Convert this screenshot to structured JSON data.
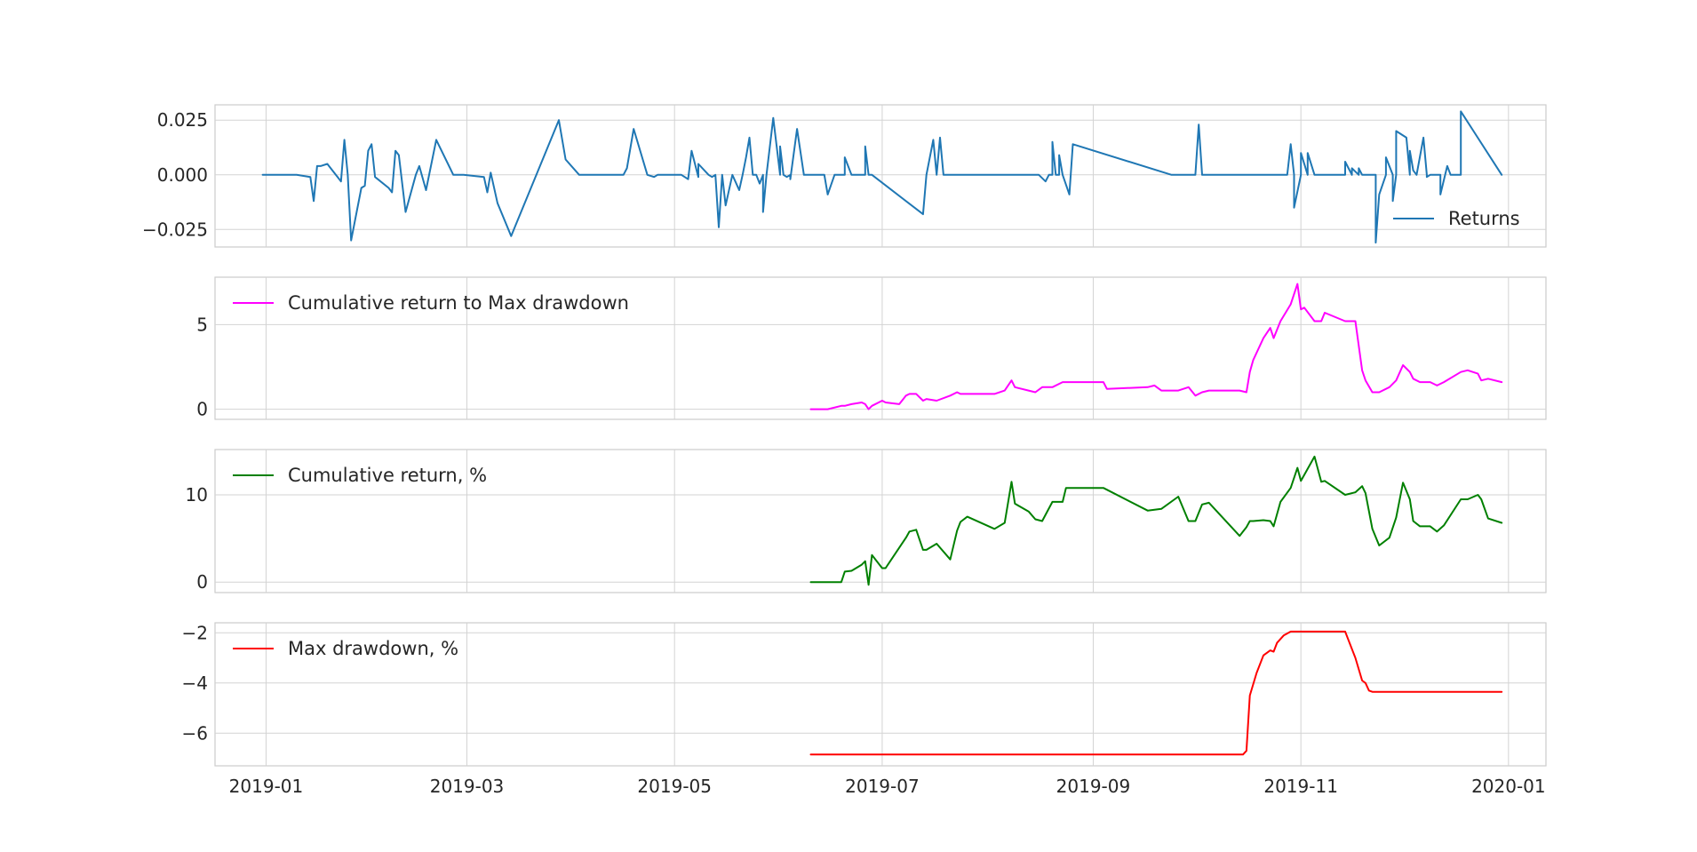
{
  "chart_data": {
    "type": "line",
    "x_range": [
      "2018-12-17",
      "2020-01-12"
    ],
    "x_ticks": [
      "2019-01",
      "2019-03",
      "2019-05",
      "2019-07",
      "2019-09",
      "2019-11",
      "2020-01"
    ],
    "grid": true,
    "panels": [
      {
        "ylim": [
          -0.033,
          0.032
        ],
        "y_ticks": [
          0.025,
          0.0,
          -0.025
        ],
        "y_tick_labels": [
          "0.025",
          "0.000",
          "−0.025"
        ],
        "legend_position": "lower-right",
        "series": [
          {
            "name": "Returns",
            "color": "#1f77b4",
            "x": [
              "2018-12-31",
              "2019-01-10",
              "2019-01-14",
              "2019-01-15",
              "2019-01-16",
              "2019-01-17",
              "2019-01-19",
              "2019-01-23",
              "2019-01-24",
              "2019-01-25",
              "2019-01-26",
              "2019-01-29",
              "2019-01-30",
              "2019-01-31",
              "2019-02-01",
              "2019-02-02",
              "2019-02-06",
              "2019-02-07",
              "2019-02-08",
              "2019-02-09",
              "2019-02-11",
              "2019-02-14",
              "2019-02-15",
              "2019-02-17",
              "2019-02-20",
              "2019-02-25",
              "2019-02-26",
              "2019-02-27",
              "2019-02-28",
              "2019-03-06",
              "2019-03-07",
              "2019-03-08",
              "2019-03-10",
              "2019-03-14",
              "2019-03-28",
              "2019-03-30",
              "2019-04-03",
              "2019-04-05",
              "2019-04-08",
              "2019-04-11",
              "2019-04-13",
              "2019-04-16",
              "2019-04-17",
              "2019-04-19",
              "2019-04-23",
              "2019-04-25",
              "2019-04-26",
              "2019-04-27",
              "2019-04-30",
              "2019-05-08",
              "2019-05-11",
              "2019-05-13",
              "2019-05-15",
              "2019-05-18",
              "2019-05-21",
              "2019-05-25",
              "2019-05-27",
              "2019-05-28",
              "2019-06-01",
              "2019-06-03",
              "2019-06-04",
              "2019-06-08",
              "2019-06-14",
              "2019-06-17",
              "2019-06-19",
              "2019-06-20",
              "2019-06-22",
              "2019-06-25",
              "2019-06-26",
              "2019-06-28",
              "2019-07-14",
              "2019-07-17",
              "2019-07-19",
              "2019-07-20",
              "2019-07-22",
              "2019-07-23",
              "2019-07-24",
              "2019-07-28",
              "2019-08-01",
              "2019-08-13",
              "2019-08-14",
              "2019-08-16",
              "2019-08-19",
              "2019-08-20",
              "2019-08-21",
              "2019-08-22",
              "2019-09-24",
              "2019-09-26",
              "2019-09-27",
              "2019-09-28",
              "2019-10-01",
              "2019-10-03",
              "2019-10-06",
              "2019-10-20",
              "2019-10-28",
              "2019-10-30",
              "2019-11-01",
              "2019-11-03",
              "2019-11-05",
              "2019-11-08",
              "2019-11-11",
              "2019-11-12",
              "2019-11-13",
              "2019-11-14",
              "2019-11-16",
              "2019-11-18",
              "2019-11-19",
              "2019-11-21",
              "2019-11-23",
              "2019-11-26",
              "2019-11-28",
              "2019-11-29",
              "2019-12-03",
              "2019-12-05",
              "2019-12-08",
              "2019-12-10",
              "2019-12-11",
              "2019-12-12",
              "2019-12-15",
              "2019-12-18",
              "2019-12-30"
            ],
            "y": [
              0.0,
              0.0,
              -0.001,
              -0.012,
              0.004,
              0.004,
              0.005,
              -0.003,
              0.016,
              0.0,
              -0.03,
              -0.006,
              -0.005,
              0.011,
              0.014,
              -0.001,
              -0.006,
              -0.008,
              0.011,
              0.009,
              -0.017,
              0.0,
              0.004,
              -0.007,
              0.016,
              0.0,
              0.0,
              0.0,
              0.0,
              -0.001,
              -0.008,
              0.001,
              -0.013,
              -0.028,
              0.025,
              0.007,
              0.0,
              0.0,
              0.0,
              0.0,
              0.0,
              0.0,
              0.003,
              0.021,
              0.0,
              -0.001,
              0.0,
              0.0,
              0.0,
              -0.001,
              0.0,
              0.0,
              0.0,
              0.0,
              0.0,
              0.0,
              0.0,
              0.0,
              0.0,
              -0.001,
              0.0,
              0.0,
              0.0,
              0.0,
              0.0,
              0.0,
              0.0,
              0.0,
              0.0,
              0.0,
              0.0,
              0.0,
              0.0,
              0.0,
              0.0,
              0.0,
              0.0,
              0.0,
              0.0,
              0.0,
              0.0,
              0.0,
              0.0,
              0.0,
              0.0,
              0.0,
              0.0,
              0.0,
              0.0,
              0.0,
              0.0,
              0.0,
              0.0,
              0.0,
              0.0,
              0.0,
              0.0,
              0.0,
              0.0,
              0.0,
              0.0,
              0.0,
              0.0,
              0.0,
              0.0,
              0.0,
              0.0,
              0.0,
              0.0,
              0.0,
              0.0,
              0.0,
              0.0,
              0.0,
              0.0,
              0.0,
              0.0,
              0.0,
              0.0,
              0.0,
              0.0
            ],
            "x_extra": [
              "2019-05-01",
              "2019-05-03",
              "2019-05-05",
              "2019-05-06",
              "2019-05-08",
              "2019-05-12",
              "2019-05-14",
              "2019-05-16",
              "2019-05-20",
              "2019-05-22",
              "2019-05-23",
              "2019-05-24",
              "2019-05-26",
              "2019-05-27",
              "2019-05-30",
              "2019-06-01",
              "2019-06-02",
              "2019-06-04",
              "2019-06-06",
              "2019-06-14",
              "2019-06-15",
              "2019-06-17",
              "2019-06-20",
              "2019-06-22",
              "2019-06-26",
              "2019-06-27",
              "2019-06-28",
              "2019-07-13",
              "2019-07-16",
              "2019-07-18",
              "2019-07-19",
              "2019-07-21",
              "2019-07-22",
              "2019-08-18",
              "2019-08-20",
              "2019-08-22",
              "2019-08-23",
              "2019-08-25",
              "2019-08-26",
              "2019-09-30",
              "2019-10-01",
              "2019-10-02",
              "2019-10-06",
              "2019-10-29",
              "2019-10-30",
              "2019-11-01",
              "2019-11-03",
              "2019-11-11",
              "2019-11-12",
              "2019-11-14",
              "2019-11-16",
              "2019-11-18",
              "2019-11-20",
              "2019-11-23",
              "2019-11-24",
              "2019-11-26",
              "2019-11-28",
              "2019-11-29",
              "2019-12-02",
              "2019-12-03",
              "2019-12-04",
              "2019-12-07",
              "2019-12-08",
              "2019-12-09",
              "2019-12-12",
              "2019-12-14",
              "2019-12-18",
              "2019-12-30"
            ]
          }
        ]
      },
      {
        "ylim": [
          -0.6,
          7.8
        ],
        "y_ticks": [
          5,
          0
        ],
        "y_tick_labels": [
          "5",
          "0"
        ],
        "legend_position": "upper-left",
        "series": [
          {
            "name": "Cumulative return to Max drawdown",
            "color": "#ff00ff",
            "x": [
              "2019-06-10",
              "2019-06-15",
              "2019-06-19",
              "2019-06-20",
              "2019-06-22",
              "2019-06-25",
              "2019-06-26",
              "2019-06-27",
              "2019-06-28",
              "2019-07-01",
              "2019-07-02",
              "2019-07-06",
              "2019-07-08",
              "2019-07-09",
              "2019-07-11",
              "2019-07-13",
              "2019-07-14",
              "2019-07-17",
              "2019-07-21",
              "2019-07-23",
              "2019-07-24",
              "2019-07-26",
              "2019-08-03",
              "2019-08-06",
              "2019-08-08",
              "2019-08-09",
              "2019-08-13",
              "2019-08-15",
              "2019-08-17",
              "2019-08-20",
              "2019-08-23",
              "2019-08-24",
              "2019-09-04",
              "2019-09-05",
              "2019-09-17",
              "2019-09-19",
              "2019-09-21",
              "2019-09-26",
              "2019-09-29",
              "2019-10-01",
              "2019-10-03",
              "2019-10-05",
              "2019-10-14",
              "2019-10-16",
              "2019-10-17",
              "2019-10-18",
              "2019-10-21",
              "2019-10-23",
              "2019-10-24",
              "2019-10-26",
              "2019-10-29",
              "2019-10-31",
              "2019-11-01",
              "2019-11-02",
              "2019-11-05",
              "2019-11-07",
              "2019-11-08",
              "2019-11-14",
              "2019-11-17",
              "2019-11-19",
              "2019-11-20",
              "2019-11-22",
              "2019-11-24",
              "2019-11-27",
              "2019-11-29",
              "2019-12-01",
              "2019-12-03",
              "2019-12-04",
              "2019-12-06",
              "2019-12-09",
              "2019-12-11",
              "2019-12-13",
              "2019-12-18",
              "2019-12-20",
              "2019-12-23",
              "2019-12-24",
              "2019-12-26",
              "2019-12-30"
            ],
            "y": [
              0.0,
              0.0,
              0.2,
              0.2,
              0.3,
              0.4,
              0.3,
              0.0,
              0.2,
              0.5,
              0.4,
              0.3,
              0.8,
              0.9,
              0.9,
              0.5,
              0.6,
              0.5,
              0.8,
              1.0,
              0.9,
              0.9,
              0.9,
              1.1,
              1.7,
              1.3,
              1.1,
              1.0,
              1.3,
              1.3,
              1.6,
              1.6,
              1.6,
              1.2,
              1.3,
              1.4,
              1.1,
              1.1,
              1.3,
              0.8,
              1.0,
              1.1,
              1.1,
              1.0,
              2.2,
              2.9,
              4.2,
              4.8,
              4.2,
              5.2,
              6.2,
              7.4,
              5.9,
              6.0,
              5.2,
              5.2,
              5.7,
              5.2,
              5.2,
              2.3,
              1.7,
              1.0,
              1.0,
              1.3,
              1.7,
              2.6,
              2.2,
              1.8,
              1.6,
              1.6,
              1.4,
              1.6,
              2.2,
              2.3,
              2.1,
              1.7,
              1.8,
              1.6
            ]
          }
        ]
      },
      {
        "ylim": [
          -1.2,
          15.2
        ],
        "y_ticks": [
          10,
          0
        ],
        "y_tick_labels": [
          "10",
          "0"
        ],
        "legend_position": "upper-left",
        "series": [
          {
            "name": "Cumulative return, %",
            "color": "#008000",
            "x": [
              "2019-06-10",
              "2019-06-19",
              "2019-06-20",
              "2019-06-22",
              "2019-06-25",
              "2019-06-26",
              "2019-06-27",
              "2019-06-28",
              "2019-07-01",
              "2019-07-02",
              "2019-07-08",
              "2019-07-09",
              "2019-07-11",
              "2019-07-13",
              "2019-07-14",
              "2019-07-17",
              "2019-07-21",
              "2019-07-23",
              "2019-07-24",
              "2019-07-26",
              "2019-08-03",
              "2019-08-06",
              "2019-08-08",
              "2019-08-09",
              "2019-08-13",
              "2019-08-15",
              "2019-08-17",
              "2019-08-20",
              "2019-08-23",
              "2019-08-24",
              "2019-09-04",
              "2019-09-05",
              "2019-09-17",
              "2019-09-19",
              "2019-09-21",
              "2019-09-26",
              "2019-09-29",
              "2019-10-01",
              "2019-10-03",
              "2019-10-05",
              "2019-10-14",
              "2019-10-16",
              "2019-10-17",
              "2019-10-18",
              "2019-10-21",
              "2019-10-23",
              "2019-10-24",
              "2019-10-26",
              "2019-10-29",
              "2019-10-31",
              "2019-11-01",
              "2019-11-02",
              "2019-11-05",
              "2019-11-07",
              "2019-11-08",
              "2019-11-14",
              "2019-11-17",
              "2019-11-19",
              "2019-11-20",
              "2019-11-22",
              "2019-11-24",
              "2019-11-27",
              "2019-11-29",
              "2019-12-01",
              "2019-12-03",
              "2019-12-04",
              "2019-12-06",
              "2019-12-09",
              "2019-12-11",
              "2019-12-13",
              "2019-12-18",
              "2019-12-20",
              "2019-12-23",
              "2019-12-24",
              "2019-12-26",
              "2019-12-30"
            ],
            "y": [
              0.0,
              0.0,
              1.2,
              1.3,
              2.0,
              2.4,
              -0.3,
              3.1,
              1.6,
              1.6,
              5.1,
              5.8,
              6.0,
              3.7,
              3.7,
              4.4,
              2.6,
              5.9,
              6.9,
              7.5,
              6.1,
              6.8,
              11.5,
              9.0,
              8.1,
              7.2,
              7.0,
              9.2,
              9.2,
              10.8,
              10.8,
              10.6,
              8.2,
              8.3,
              8.4,
              9.8,
              7.0,
              7.0,
              8.9,
              9.1,
              5.3,
              6.3,
              7.0,
              7.0,
              7.1,
              7.0,
              6.4,
              9.2,
              10.8,
              13.1,
              11.6,
              12.3,
              14.4,
              11.5,
              11.6,
              10.0,
              10.3,
              11.0,
              10.2,
              6.1,
              4.2,
              5.1,
              7.4,
              11.4,
              9.5,
              7.0,
              6.4,
              6.4,
              5.8,
              6.5,
              9.5,
              9.5,
              10.0,
              9.5,
              7.3,
              6.8
            ]
          }
        ]
      },
      {
        "ylim": [
          -7.3,
          -1.6
        ],
        "y_ticks": [
          -2,
          -4,
          -6
        ],
        "y_tick_labels": [
          "−2",
          "−4",
          "−6"
        ],
        "legend_position": "upper-left",
        "series": [
          {
            "name": "Max drawdown, %",
            "color": "#ff0000",
            "x": [
              "2019-06-10",
              "2019-10-15",
              "2019-10-16",
              "2019-10-17",
              "2019-10-19",
              "2019-10-21",
              "2019-10-23",
              "2019-10-24",
              "2019-10-25",
              "2019-10-27",
              "2019-10-29",
              "2019-11-01",
              "2019-11-14",
              "2019-11-17",
              "2019-11-19",
              "2019-11-20",
              "2019-11-21",
              "2019-11-22",
              "2019-12-30"
            ],
            "y": [
              -6.85,
              -6.85,
              -6.7,
              -4.5,
              -3.6,
              -2.9,
              -2.7,
              -2.75,
              -2.4,
              -2.1,
              -1.95,
              -1.95,
              -1.95,
              -3.0,
              -3.9,
              -4.0,
              -4.3,
              -4.35,
              -4.35
            ]
          }
        ]
      }
    ]
  }
}
